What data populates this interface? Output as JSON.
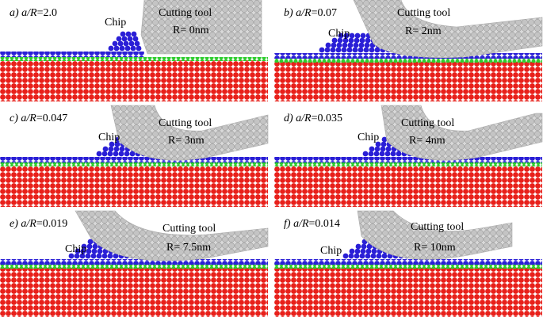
{
  "panels": [
    {
      "label": "a)",
      "ratio": "a/R",
      "value": "=2.0",
      "chip": "Chip",
      "tool": "Cutting tool",
      "radius": "R= 0nm"
    },
    {
      "label": "b)",
      "ratio": "a/R",
      "value": "=0.07",
      "chip": "Chip",
      "tool": "Cutting tool",
      "radius": "R= 2nm"
    },
    {
      "label": "c)",
      "ratio": "a/R",
      "value": "=0.047",
      "chip": "Chip",
      "tool": "Cutting tool",
      "radius": "R= 3nm"
    },
    {
      "label": "d)",
      "ratio": "a/R",
      "value": "=0.035",
      "chip": "Chip",
      "tool": "Cutting tool",
      "radius": "R= 4nm"
    },
    {
      "label": "e)",
      "ratio": "a/R",
      "value": "=0.019",
      "chip": "Chip",
      "tool": "Cutting tool",
      "radius": "R= 7.5nm"
    },
    {
      "label": "f)",
      "ratio": "a/R",
      "value": "=0.014",
      "chip": "Chip",
      "tool": "Cutting tool",
      "radius": "R= 10nm"
    }
  ]
}
